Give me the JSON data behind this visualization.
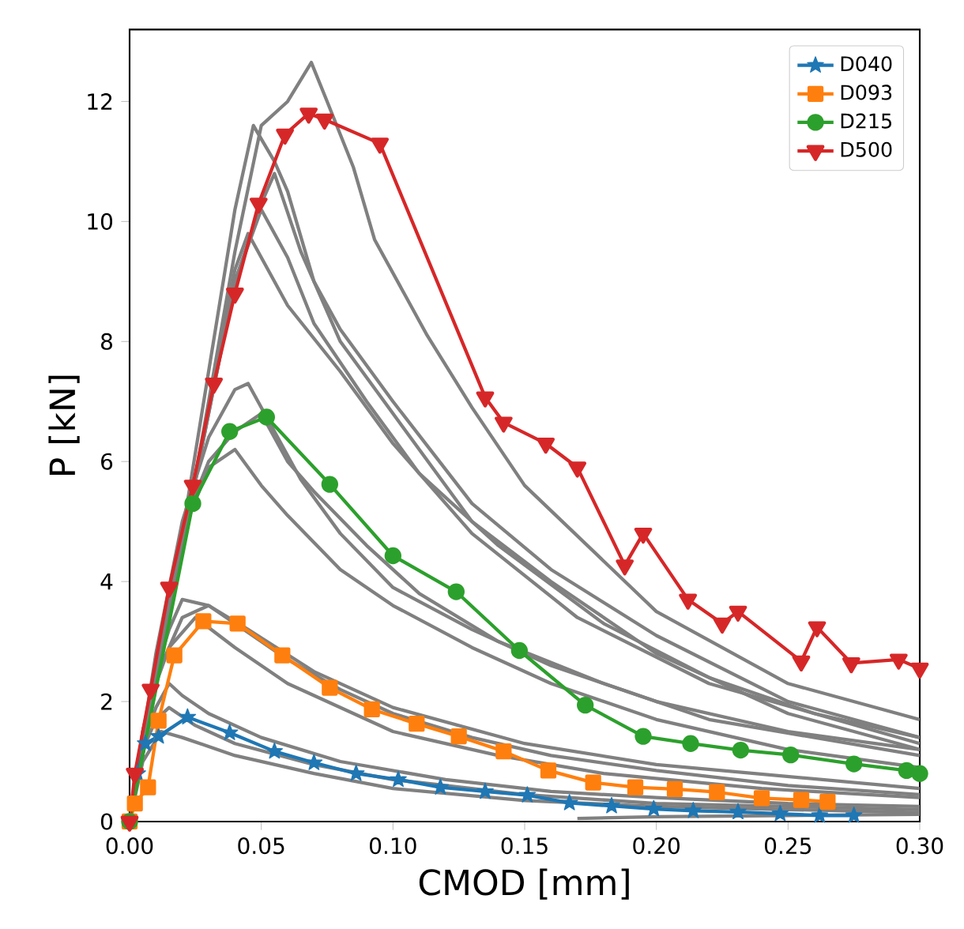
{
  "chart_data": {
    "type": "line",
    "xlabel": "CMOD [mm]",
    "ylabel": "P [kN]",
    "xlim": [
      0,
      0.3
    ],
    "ylim": [
      0,
      13.2
    ],
    "xticks": [
      {
        "value": 0,
        "label": "0.00"
      },
      {
        "value": 0.05,
        "label": "0.05"
      },
      {
        "value": 0.1,
        "label": "0.10"
      },
      {
        "value": 0.15,
        "label": "0.15"
      },
      {
        "value": 0.2,
        "label": "0.20"
      },
      {
        "value": 0.25,
        "label": "0.25"
      },
      {
        "value": 0.3,
        "label": "0.30"
      }
    ],
    "yticks": [
      0,
      2,
      4,
      6,
      8,
      10,
      12
    ],
    "grid": false,
    "legend": "top right",
    "series": [
      {
        "color": "#808080",
        "marker": "none",
        "x": [
          0,
          0.02,
          0.04,
          0.05,
          0.06,
          0.069,
          0.075,
          0.085,
          0.093,
          0.113,
          0.13,
          0.15,
          0.2,
          0.25,
          0.3
        ],
        "values": [
          0,
          4.5,
          9.5,
          11.6,
          12.0,
          12.65,
          12.0,
          10.9,
          9.7,
          8.1,
          6.9,
          5.6,
          3.5,
          2.3,
          1.7
        ]
      },
      {
        "color": "#808080",
        "marker": "none",
        "x": [
          0,
          0.02,
          0.04,
          0.047,
          0.055,
          0.06,
          0.07,
          0.08,
          0.1,
          0.13,
          0.16,
          0.2,
          0.25,
          0.3
        ],
        "values": [
          0,
          4.8,
          10.2,
          11.6,
          11.0,
          10.5,
          9.0,
          8.2,
          7.0,
          5.3,
          4.2,
          3.1,
          2.0,
          1.4
        ]
      },
      {
        "color": "#808080",
        "marker": "none",
        "x": [
          0,
          0.02,
          0.04,
          0.05,
          0.055,
          0.065,
          0.08,
          0.1,
          0.13,
          0.16,
          0.2,
          0.25,
          0.3
        ],
        "values": [
          0,
          4.6,
          9.0,
          10.3,
          10.8,
          9.5,
          8.0,
          6.8,
          5.0,
          4.0,
          2.8,
          1.8,
          1.2
        ]
      },
      {
        "color": "#808080",
        "marker": "none",
        "x": [
          0,
          0.02,
          0.04,
          0.05,
          0.06,
          0.07,
          0.09,
          0.11,
          0.14,
          0.18,
          0.22,
          0.26,
          0.3
        ],
        "values": [
          0,
          4.6,
          9.0,
          10.2,
          9.4,
          8.3,
          7.0,
          5.8,
          4.6,
          3.3,
          2.4,
          1.8,
          1.4
        ]
      },
      {
        "color": "#808080",
        "marker": "none",
        "x": [
          0,
          0.02,
          0.04,
          0.045,
          0.06,
          0.08,
          0.1,
          0.13,
          0.17,
          0.22,
          0.3
        ],
        "values": [
          0,
          4.5,
          9.2,
          9.8,
          8.6,
          7.5,
          6.3,
          4.8,
          3.4,
          2.3,
          1.3
        ]
      },
      {
        "color": "#808080",
        "marker": "none",
        "x": [
          0,
          0.01,
          0.02,
          0.03,
          0.04,
          0.045,
          0.055,
          0.065,
          0.08,
          0.1,
          0.13,
          0.16,
          0.2,
          0.25,
          0.3
        ],
        "values": [
          0,
          2.8,
          5.0,
          6.4,
          7.2,
          7.3,
          6.5,
          5.7,
          4.8,
          3.9,
          3.2,
          2.6,
          2.0,
          1.5,
          1.2
        ]
      },
      {
        "color": "#808080",
        "marker": "none",
        "x": [
          0,
          0.01,
          0.02,
          0.03,
          0.04,
          0.05,
          0.06,
          0.08,
          0.1,
          0.13,
          0.16,
          0.2,
          0.25,
          0.3
        ],
        "values": [
          0,
          2.7,
          4.8,
          5.9,
          6.2,
          5.6,
          5.1,
          4.2,
          3.6,
          2.9,
          2.3,
          1.7,
          1.2,
          0.9
        ]
      },
      {
        "color": "#808080",
        "marker": "none",
        "x": [
          0,
          0.01,
          0.02,
          0.03,
          0.04,
          0.05,
          0.06,
          0.07,
          0.09,
          0.11,
          0.14,
          0.18,
          0.22,
          0.3
        ],
        "values": [
          0,
          2.7,
          4.9,
          6.0,
          6.5,
          6.8,
          6.0,
          5.5,
          4.6,
          3.8,
          3.0,
          2.3,
          1.7,
          1.1
        ]
      },
      {
        "color": "#808080",
        "marker": "none",
        "x": [
          0,
          0.005,
          0.01,
          0.015,
          0.02,
          0.03,
          0.04,
          0.06,
          0.08,
          0.1,
          0.13,
          0.16,
          0.2,
          0.25,
          0.3
        ],
        "values": [
          0,
          1.5,
          2.5,
          3.2,
          3.7,
          3.6,
          3.3,
          2.7,
          2.2,
          1.8,
          1.4,
          1.1,
          0.85,
          0.6,
          0.45
        ]
      },
      {
        "color": "#808080",
        "marker": "none",
        "x": [
          0,
          0.005,
          0.01,
          0.015,
          0.025,
          0.04,
          0.06,
          0.08,
          0.1,
          0.14,
          0.18,
          0.24,
          0.3
        ],
        "values": [
          0,
          1.4,
          2.3,
          2.9,
          3.4,
          2.9,
          2.3,
          1.9,
          1.5,
          1.1,
          0.8,
          0.55,
          0.4
        ]
      },
      {
        "color": "#808080",
        "marker": "none",
        "x": [
          0,
          0.005,
          0.01,
          0.02,
          0.03,
          0.045,
          0.07,
          0.1,
          0.15,
          0.2,
          0.3
        ],
        "values": [
          0,
          1.5,
          2.4,
          3.4,
          3.6,
          3.2,
          2.5,
          1.9,
          1.3,
          0.95,
          0.55
        ]
      },
      {
        "color": "#808080",
        "marker": "none",
        "x": [
          0,
          0.005,
          0.01,
          0.015,
          0.02,
          0.03,
          0.05,
          0.08,
          0.12,
          0.16,
          0.2,
          0.25,
          0.3
        ],
        "values": [
          0,
          1.3,
          1.9,
          2.3,
          2.1,
          1.8,
          1.4,
          1.0,
          0.7,
          0.5,
          0.4,
          0.3,
          0.25
        ]
      },
      {
        "color": "#808080",
        "marker": "none",
        "x": [
          0,
          0.005,
          0.01,
          0.015,
          0.025,
          0.04,
          0.07,
          0.1,
          0.15,
          0.2,
          0.3
        ],
        "values": [
          0,
          1.2,
          1.7,
          1.9,
          1.6,
          1.3,
          0.95,
          0.7,
          0.45,
          0.3,
          0.2
        ]
      },
      {
        "color": "#808080",
        "marker": "none",
        "x": [
          0,
          0.005,
          0.012,
          0.02,
          0.04,
          0.07,
          0.1,
          0.15,
          0.2,
          0.3
        ],
        "values": [
          0,
          1.0,
          1.5,
          1.4,
          1.1,
          0.8,
          0.55,
          0.35,
          0.25,
          0.15
        ]
      },
      {
        "color": "#808080",
        "marker": "none",
        "x": [
          0.17,
          0.2,
          0.25,
          0.3
        ],
        "values": [
          0.05,
          0.08,
          0.1,
          0.12
        ]
      },
      {
        "name": "D040",
        "color": "#1f77b4",
        "marker": "star",
        "x": [
          0,
          0.003,
          0.006,
          0.011,
          0.022,
          0.038,
          0.055,
          0.07,
          0.086,
          0.102,
          0.118,
          0.135,
          0.151,
          0.167,
          0.183,
          0.199,
          0.214,
          0.231,
          0.247,
          0.262,
          0.275
        ],
        "values": [
          0,
          0.8,
          1.3,
          1.42,
          1.74,
          1.48,
          1.17,
          0.98,
          0.8,
          0.7,
          0.57,
          0.5,
          0.44,
          0.31,
          0.26,
          0.21,
          0.18,
          0.16,
          0.13,
          0.1,
          0.1
        ]
      },
      {
        "name": "D093",
        "color": "#ff7f0e",
        "marker": "square",
        "x": [
          0,
          0.002,
          0.007,
          0.011,
          0.017,
          0.028,
          0.041,
          0.058,
          0.076,
          0.092,
          0.109,
          0.125,
          0.142,
          0.159,
          0.176,
          0.192,
          0.207,
          0.223,
          0.24,
          0.255,
          0.265
        ],
        "values": [
          0,
          0.3,
          0.57,
          1.68,
          2.77,
          3.34,
          3.3,
          2.77,
          2.23,
          1.87,
          1.63,
          1.42,
          1.17,
          0.85,
          0.65,
          0.57,
          0.54,
          0.49,
          0.39,
          0.36,
          0.33
        ]
      },
      {
        "name": "D215",
        "color": "#2ca02c",
        "marker": "circle",
        "x": [
          0,
          0.003,
          0.008,
          0.015,
          0.024,
          0.038,
          0.052,
          0.076,
          0.1,
          0.124,
          0.148,
          0.173,
          0.195,
          0.213,
          0.232,
          0.251,
          0.275,
          0.295,
          0.3
        ],
        "values": [
          0,
          null,
          null,
          null,
          5.3,
          6.5,
          6.74,
          5.62,
          4.43,
          3.83,
          2.85,
          1.94,
          1.42,
          1.3,
          1.19,
          1.11,
          0.96,
          0.85,
          0.8
        ]
      },
      {
        "name": "D500",
        "color": "#d62728",
        "marker": "triangle",
        "x": [
          0,
          0.002,
          0.008,
          0.015,
          0.024,
          0.032,
          0.04,
          0.049,
          0.059,
          0.068,
          0.074,
          0.095,
          0.135,
          0.142,
          0.158,
          0.17,
          0.188,
          0.195,
          0.212,
          0.225,
          0.231,
          0.255,
          0.261,
          0.274,
          0.292,
          0.3
        ],
        "values": [
          0,
          0.8,
          2.2,
          3.9,
          5.6,
          7.3,
          8.8,
          10.3,
          11.45,
          11.8,
          11.7,
          11.3,
          7.07,
          6.65,
          6.3,
          5.9,
          4.27,
          4.8,
          3.7,
          3.3,
          3.5,
          2.67,
          3.24,
          2.64,
          2.7,
          2.55
        ]
      }
    ]
  }
}
